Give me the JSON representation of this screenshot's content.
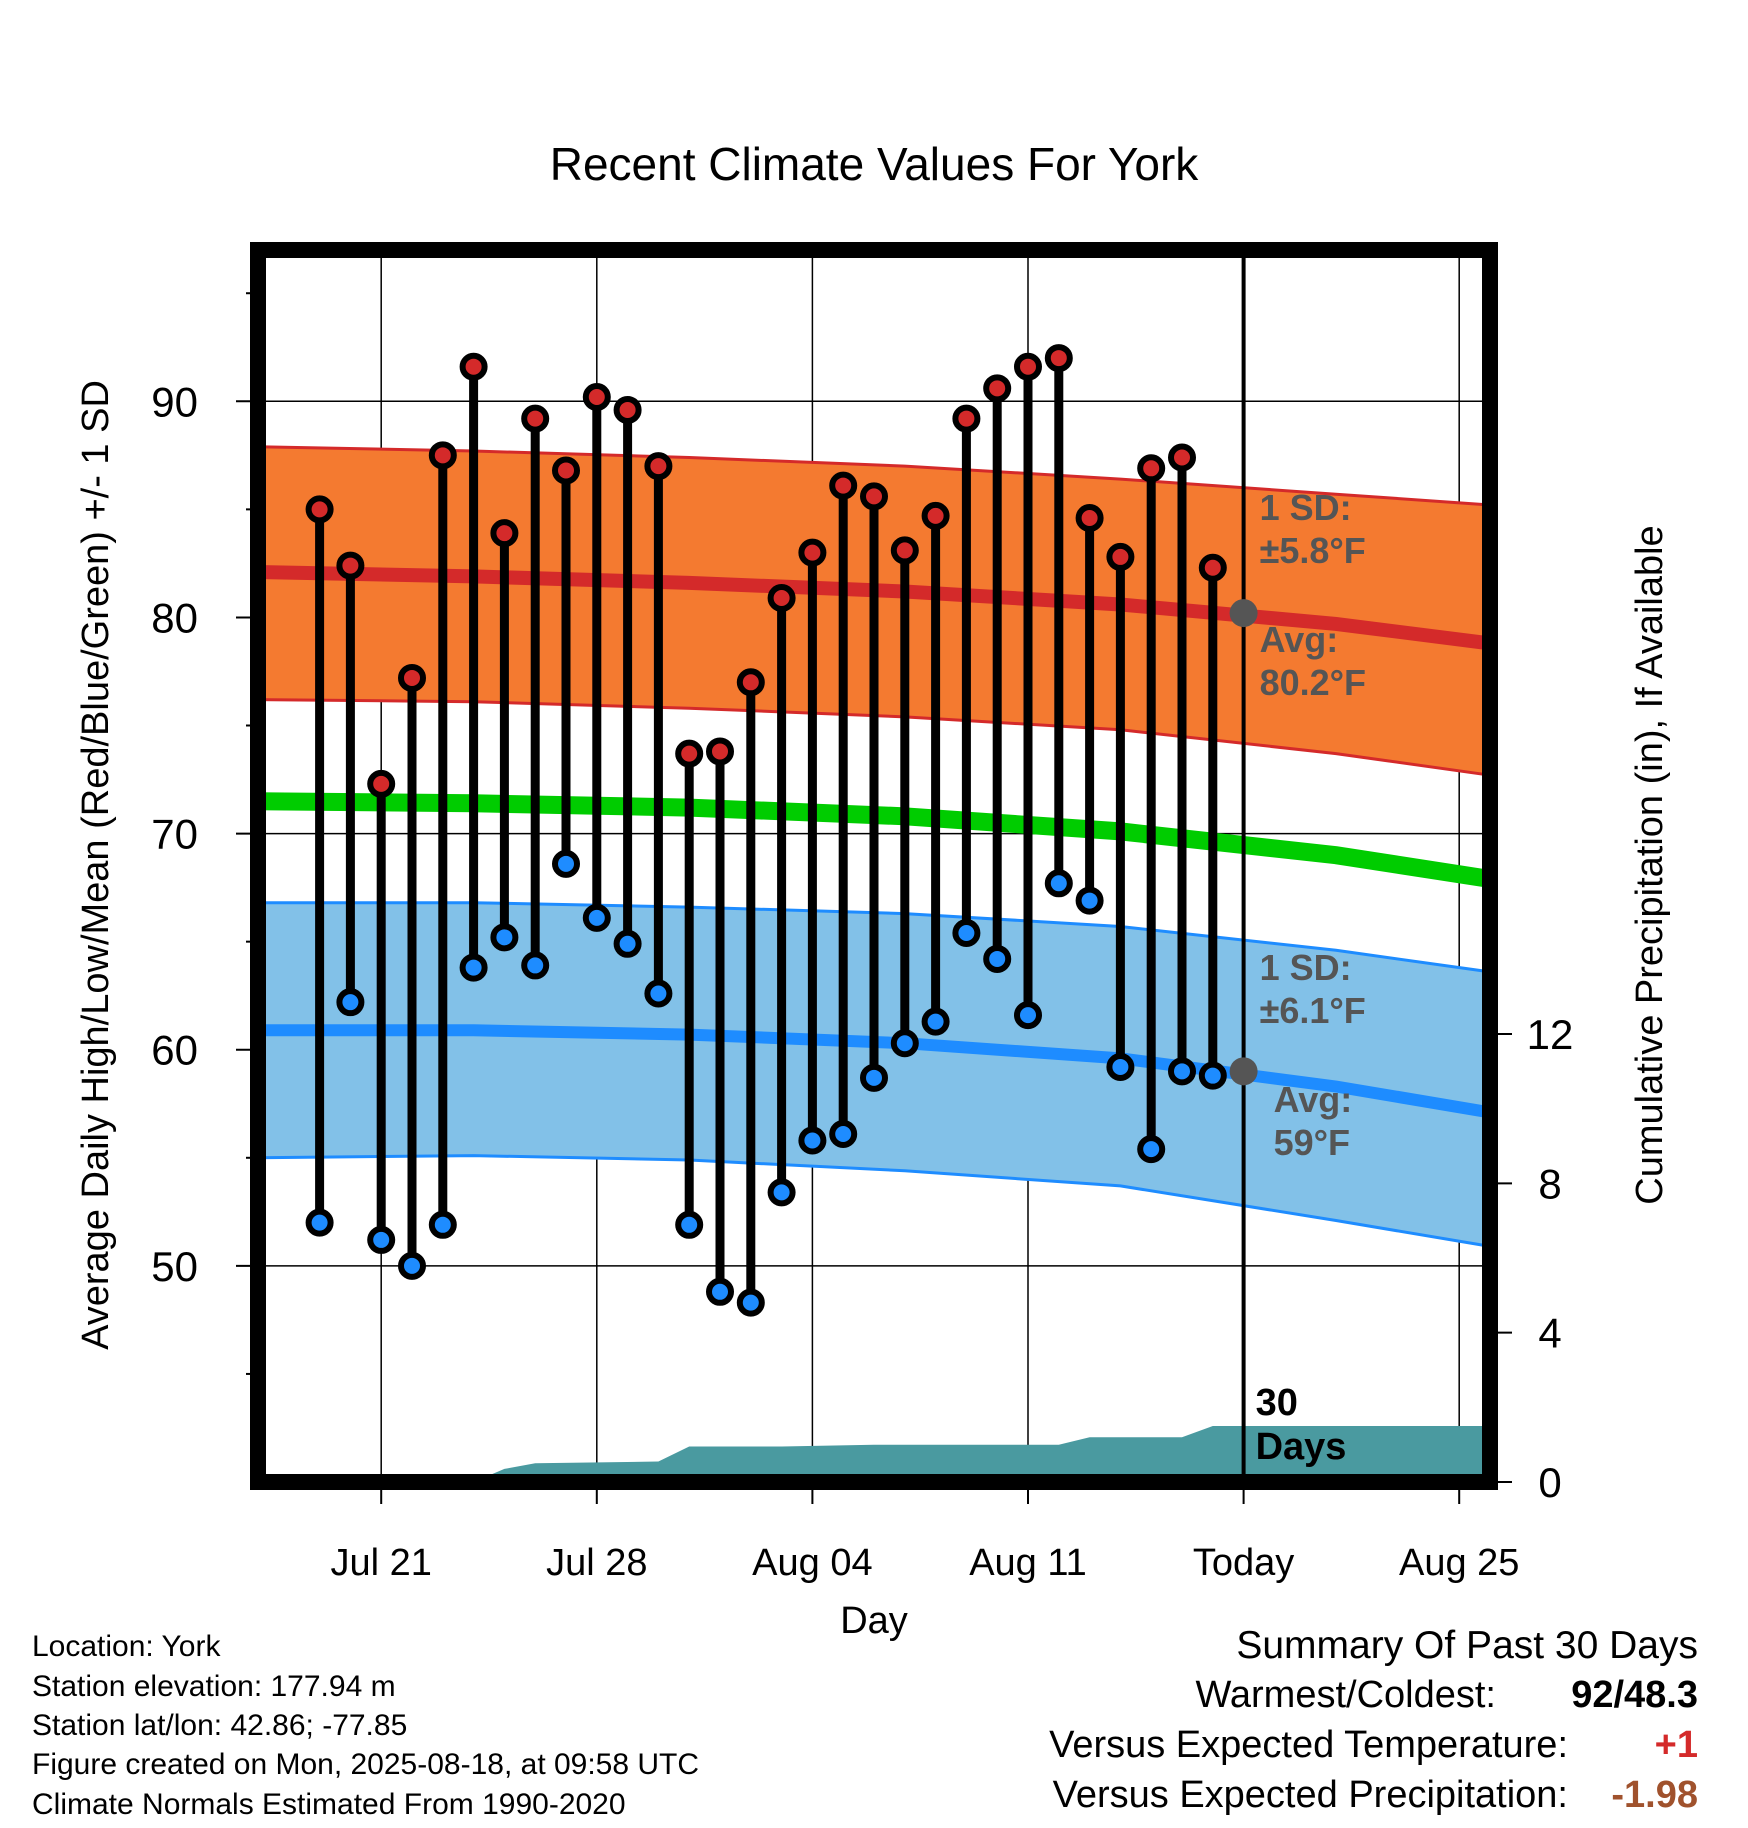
{
  "chart_data": {
    "type": "line",
    "title": "Recent Climate Values For York",
    "xlabel": "Day",
    "ylabel": "Average Daily High/Low/Mean (Red/Blue/Green) +/- 1 SD",
    "y2label": "Cumulative Precipitation (in), If Available",
    "ylim": [
      40,
      97
    ],
    "y2lim": [
      0,
      33
    ],
    "yticks": [
      50,
      60,
      70,
      80,
      90
    ],
    "y2ticks": [
      0,
      4,
      8,
      12
    ],
    "xlim": [
      "2025-07-17",
      "2025-08-26"
    ],
    "xticks": [
      {
        "date": "2025-07-21",
        "label": "Jul 21"
      },
      {
        "date": "2025-07-28",
        "label": "Jul 28"
      },
      {
        "date": "2025-08-04",
        "label": "Aug 04"
      },
      {
        "date": "2025-08-11",
        "label": "Aug 11"
      },
      {
        "date": "2025-08-18",
        "label": "Today"
      },
      {
        "date": "2025-08-25",
        "label": "Aug 25"
      }
    ],
    "today": "2025-08-18",
    "grid": true,
    "daily": {
      "dates": [
        "2025-07-19",
        "2025-07-20",
        "2025-07-21",
        "2025-07-22",
        "2025-07-23",
        "2025-07-24",
        "2025-07-25",
        "2025-07-26",
        "2025-07-27",
        "2025-07-28",
        "2025-07-29",
        "2025-07-30",
        "2025-07-31",
        "2025-08-01",
        "2025-08-02",
        "2025-08-03",
        "2025-08-04",
        "2025-08-05",
        "2025-08-06",
        "2025-08-07",
        "2025-08-08",
        "2025-08-09",
        "2025-08-10",
        "2025-08-11",
        "2025-08-12",
        "2025-08-13",
        "2025-08-14",
        "2025-08-15",
        "2025-08-16",
        "2025-08-17"
      ],
      "high": [
        85.0,
        82.4,
        72.3,
        77.2,
        87.5,
        91.6,
        83.9,
        89.2,
        86.8,
        90.2,
        89.6,
        87.0,
        73.7,
        73.8,
        77.0,
        80.9,
        83.0,
        86.1,
        85.6,
        83.1,
        84.7,
        89.2,
        90.6,
        91.6,
        92.0,
        84.6,
        82.8,
        86.9,
        87.4,
        82.3
      ],
      "low": [
        52.0,
        62.2,
        51.2,
        50.0,
        51.9,
        63.8,
        65.2,
        63.9,
        68.6,
        66.1,
        64.9,
        62.6,
        51.9,
        48.8,
        48.3,
        53.4,
        55.8,
        56.1,
        58.7,
        60.3,
        61.3,
        65.4,
        64.2,
        61.6,
        67.7,
        66.9,
        59.2,
        55.4,
        59.0,
        58.8
      ]
    },
    "normals": {
      "dates": [
        "2025-07-17",
        "2025-07-24",
        "2025-07-31",
        "2025-08-07",
        "2025-08-14",
        "2025-08-21",
        "2025-08-26"
      ],
      "high_mean": [
        82.1,
        81.9,
        81.6,
        81.2,
        80.6,
        79.7,
        78.8
      ],
      "high_upper": [
        87.9,
        87.7,
        87.4,
        87.0,
        86.4,
        85.7,
        85.2
      ],
      "high_lower": [
        76.2,
        76.1,
        75.8,
        75.4,
        74.8,
        73.7,
        72.7
      ],
      "low_mean": [
        60.9,
        60.9,
        60.7,
        60.3,
        59.6,
        58.3,
        57.1
      ],
      "low_upper": [
        66.8,
        66.8,
        66.6,
        66.3,
        65.7,
        64.6,
        63.6
      ],
      "low_lower": [
        55.0,
        55.1,
        54.9,
        54.4,
        53.7,
        52.1,
        50.9
      ],
      "avg_mean": [
        71.5,
        71.4,
        71.2,
        70.8,
        70.1,
        69.0,
        67.9
      ]
    },
    "precip": {
      "dates": [
        "2025-07-17",
        "2025-07-24",
        "2025-07-25",
        "2025-07-26",
        "2025-07-30",
        "2025-07-31",
        "2025-08-03",
        "2025-08-06",
        "2025-08-12",
        "2025-08-13",
        "2025-08-16",
        "2025-08-17",
        "2025-08-26"
      ],
      "values": [
        0.0,
        0.0,
        0.35,
        0.5,
        0.55,
        0.95,
        0.95,
        1.0,
        1.0,
        1.2,
        1.2,
        1.5,
        1.5
      ]
    },
    "annotations": {
      "high_sd_label": "1 SD:",
      "high_sd_value": "±5.8°F",
      "high_avg_label": "Avg:",
      "high_avg_value": "80.2°F",
      "low_sd_label": "1 SD:",
      "low_sd_value": "±6.1°F",
      "low_avg_label": "Avg:",
      "low_avg_value": "59°F",
      "days_number": "30",
      "days_word": "Days",
      "today_high_avg": 80.2,
      "today_low_avg": 59.0
    },
    "colors": {
      "high": "#d42a2a",
      "high_band": "#f47a30",
      "low": "#1e8cff",
      "low_band": "#82c1e8",
      "mean": "#00cc00",
      "precip": "#4a9aa0",
      "annotation": "#555555"
    }
  },
  "footer": {
    "location": "Location: York",
    "elevation": "Station elevation: 177.94 m",
    "latlon": "Station lat/lon: 42.86; -77.85",
    "created": "Figure created on Mon, 2025-08-18, at 09:58 UTC",
    "normals": "Climate Normals Estimated From 1990-2020"
  },
  "summary": {
    "title": "Summary Of Past 30 Days",
    "warmest_coldest_label": "Warmest/Coldest:",
    "warmest_coldest_value": "92/48.3",
    "temp_label": "Versus Expected Temperature:",
    "temp_value": "+1",
    "precip_label": "Versus Expected Precipitation:",
    "precip_value": "-1.98",
    "temp_color": "#d42a2a",
    "precip_color": "#a0522d"
  }
}
